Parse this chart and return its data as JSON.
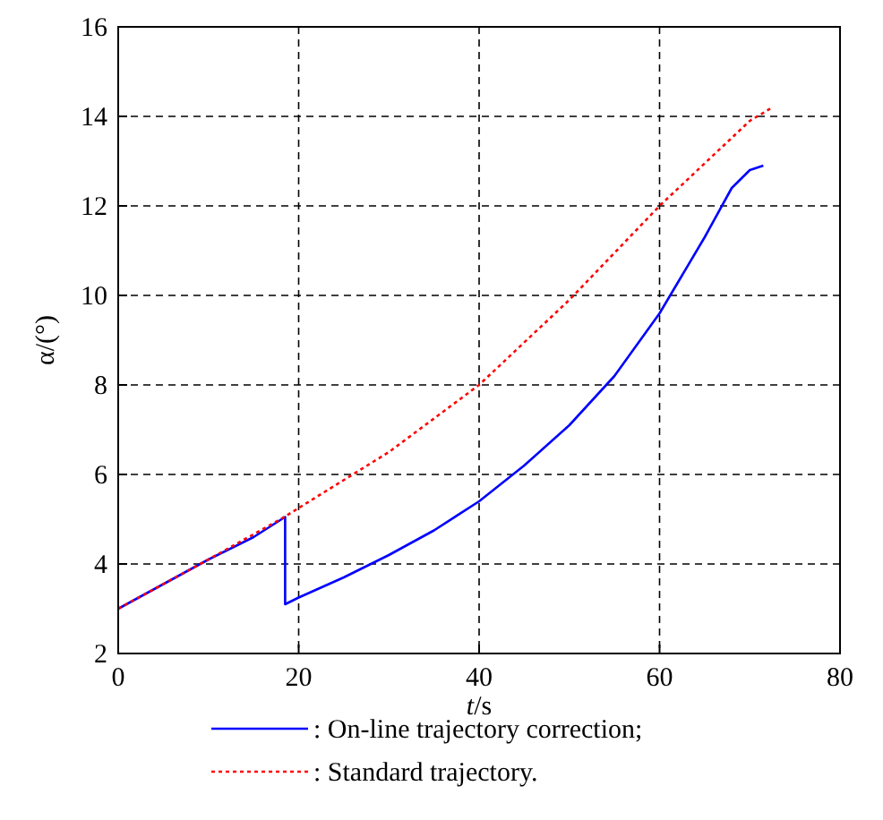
{
  "chart_data": {
    "type": "line",
    "xlabel": "t/s",
    "ylabel": "α/(°)",
    "xlim": [
      0,
      80
    ],
    "ylim": [
      2,
      16
    ],
    "xticks": [
      0,
      20,
      40,
      60,
      80
    ],
    "yticks": [
      2,
      4,
      6,
      8,
      10,
      12,
      14,
      16
    ],
    "grid": true,
    "legend": "bottom",
    "series": [
      {
        "name": ": On-line trajectory correction;",
        "color": "#0000ff",
        "line_style": "solid",
        "x": [
          0,
          5,
          10,
          15,
          18.5,
          18.5,
          20,
          25,
          30,
          35,
          40,
          45,
          50,
          55,
          60,
          65,
          68,
          70,
          71.5
        ],
        "values": [
          3,
          3.55,
          4.1,
          4.6,
          5.05,
          3.1,
          3.25,
          3.7,
          4.2,
          4.75,
          5.4,
          6.2,
          7.1,
          8.2,
          9.6,
          11.3,
          12.4,
          12.8,
          12.9
        ]
      },
      {
        "name": ": Standard trajectory.",
        "color": "#ff0000",
        "line_style": "dotted",
        "x": [
          0,
          10,
          18,
          20,
          30,
          40,
          50,
          60,
          70,
          72.5
        ],
        "values": [
          3,
          4.1,
          5,
          5.25,
          6.5,
          8,
          9.9,
          12,
          13.9,
          14.2
        ]
      }
    ]
  }
}
